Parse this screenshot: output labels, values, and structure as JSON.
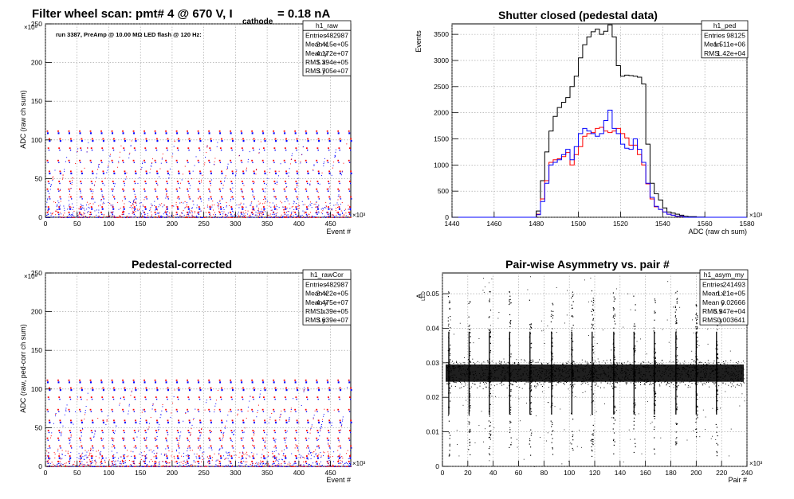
{
  "page_title": {
    "main": "Filter wheel scan: pmt#   4 @   670 V, I",
    "sub": "cathode",
    "tail": "= 0.18 nA"
  },
  "panels": {
    "raw": {
      "title": "",
      "annotation": "run 3387, PreAmp @ 10.00 MΩ LED flash @  120 Hz:",
      "xlabel": "Event #",
      "ylabel": "ADC (raw ch sum)",
      "x_exponent": "×10³",
      "y_exponent": "×10⁶",
      "stats": {
        "name": "h1_raw",
        "rows": [
          {
            "k": "Entries",
            "v": "482987"
          },
          {
            "k": "Mean x",
            "v": "2.415e+05"
          },
          {
            "k": "Mean y",
            "v": "4.172e+07"
          },
          {
            "k": "RMS x",
            "v": "1.394e+05"
          },
          {
            "k": "RMS y",
            "v": "3.705e+07"
          }
        ]
      }
    },
    "ped": {
      "title": "Shutter closed (pedestal data)",
      "xlabel": "ADC (raw ch sum)",
      "ylabel": "Events",
      "x_exponent": "×10³",
      "stats": {
        "name": "h1_ped",
        "rows": [
          {
            "k": "Entries",
            "v": "98125"
          },
          {
            "k": "Mean",
            "v": "1.511e+06"
          },
          {
            "k": "RMS",
            "v": "1.42e+04"
          }
        ]
      }
    },
    "cor": {
      "title": "Pedestal-corrected",
      "xlabel": "Event #",
      "ylabel": "ADC (raw, ped-corr ch sum)",
      "x_exponent": "×10³",
      "y_exponent": "×10⁶",
      "stats": {
        "name": "h1_rawCor",
        "rows": [
          {
            "k": "Entries",
            "v": "482987"
          },
          {
            "k": "Mean x",
            "v": "2.422e+05"
          },
          {
            "k": "Mean y",
            "v": "4.475e+07"
          },
          {
            "k": "RMS x",
            "v": "1.39e+05"
          },
          {
            "k": "RMS y",
            "v": "3.639e+07"
          }
        ]
      }
    },
    "asym": {
      "title": "Pair-wise Asymmetry vs. pair #",
      "xlabel": "Pair #",
      "ylabel": "A",
      "ylabel_sub": "LED",
      "x_exponent": "×10³",
      "stats": {
        "name": "h1_asym_my",
        "rows": [
          {
            "k": "Entries",
            "v": "241493"
          },
          {
            "k": "Mean x",
            "v": "1.21e+05"
          },
          {
            "k": "Mean y",
            "v": "0.02666"
          },
          {
            "k": "RMS x",
            "v": "6.947e+04"
          },
          {
            "k": "RMS y",
            "v": "0.003641"
          }
        ]
      }
    }
  },
  "colors": {
    "black": "#000000",
    "red": "#ff0000",
    "blue": "#0000ff",
    "grid": "#9a9a9a"
  },
  "chart_data": [
    {
      "id": "raw",
      "type": "scatter",
      "xlim": [
        0,
        482
      ],
      "ylim": [
        0,
        250
      ],
      "xticks": [
        0,
        50,
        100,
        150,
        200,
        250,
        300,
        350,
        400,
        450
      ],
      "yticks": [
        0,
        50,
        100,
        150,
        200,
        250
      ],
      "grid": true,
      "levels": [
        5,
        12,
        25,
        35,
        45,
        58,
        72,
        88,
        100,
        110
      ],
      "period": 17,
      "levels_note_units": "×10⁶ ADC"
    },
    {
      "id": "ped",
      "type": "line",
      "xlim": [
        1440,
        1580
      ],
      "ylim": [
        0,
        3700
      ],
      "xticks": [
        1440,
        1460,
        1480,
        1500,
        1520,
        1540,
        1560,
        1580
      ],
      "yticks": [
        0,
        500,
        1000,
        1500,
        2000,
        2500,
        3000,
        3500
      ],
      "grid": true,
      "bin_width": 2,
      "series": [
        {
          "color": "black",
          "x": [
            1440,
            1478,
            1480,
            1482,
            1484,
            1486,
            1488,
            1490,
            1492,
            1494,
            1496,
            1498,
            1500,
            1502,
            1504,
            1506,
            1508,
            1510,
            1512,
            1514,
            1516,
            1518,
            1520,
            1522,
            1524,
            1526,
            1528,
            1530,
            1532,
            1534,
            1536,
            1538,
            1540,
            1542,
            1544,
            1546,
            1548,
            1550,
            1552,
            1556,
            1560,
            1580
          ],
          "y": [
            0,
            0,
            120,
            700,
            1250,
            1650,
            1930,
            2100,
            2200,
            2290,
            2500,
            2700,
            3050,
            3300,
            3450,
            3550,
            3600,
            3500,
            3560,
            3680,
            3450,
            2900,
            2700,
            2720,
            2710,
            2700,
            2680,
            2550,
            1400,
            650,
            450,
            330,
            180,
            100,
            80,
            60,
            40,
            20,
            10,
            5,
            0,
            0
          ]
        },
        {
          "color": "red",
          "x": [
            1440,
            1478,
            1480,
            1482,
            1484,
            1486,
            1488,
            1490,
            1492,
            1494,
            1496,
            1498,
            1500,
            1502,
            1504,
            1506,
            1508,
            1510,
            1512,
            1514,
            1516,
            1518,
            1520,
            1522,
            1524,
            1526,
            1528,
            1530,
            1532,
            1534,
            1536,
            1538,
            1540,
            1542,
            1544,
            1546,
            1550,
            1580
          ],
          "y": [
            0,
            0,
            60,
            350,
            700,
            1050,
            1100,
            1120,
            1160,
            1240,
            1000,
            1200,
            1350,
            1550,
            1600,
            1620,
            1700,
            1720,
            1650,
            1620,
            1650,
            1700,
            1600,
            1520,
            1380,
            1380,
            1200,
            1000,
            640,
            350,
            200,
            150,
            100,
            60,
            40,
            20,
            0,
            0
          ]
        },
        {
          "color": "blue",
          "x": [
            1440,
            1478,
            1480,
            1482,
            1484,
            1486,
            1488,
            1490,
            1492,
            1494,
            1496,
            1498,
            1500,
            1502,
            1504,
            1506,
            1508,
            1510,
            1512,
            1514,
            1516,
            1518,
            1520,
            1522,
            1524,
            1526,
            1528,
            1530,
            1532,
            1534,
            1536,
            1538,
            1540,
            1542,
            1544,
            1546,
            1550,
            1580
          ],
          "y": [
            0,
            0,
            50,
            300,
            650,
            1000,
            1050,
            1100,
            1200,
            1300,
            1100,
            1350,
            1600,
            1700,
            1650,
            1600,
            1550,
            1600,
            1850,
            2050,
            1700,
            1600,
            1400,
            1320,
            1300,
            1500,
            1300,
            1050,
            650,
            380,
            210,
            150,
            100,
            60,
            40,
            20,
            0,
            0
          ]
        }
      ]
    },
    {
      "id": "cor",
      "type": "scatter",
      "xlim": [
        0,
        482
      ],
      "ylim": [
        0,
        250
      ],
      "xticks": [
        0,
        50,
        100,
        150,
        200,
        250,
        300,
        350,
        400,
        450
      ],
      "yticks": [
        0,
        50,
        100,
        150,
        200,
        250
      ],
      "grid": true,
      "levels": [
        5,
        12,
        25,
        35,
        45,
        58,
        72,
        88,
        100,
        110
      ],
      "period": 17
    },
    {
      "id": "asym",
      "type": "scatter",
      "xlim": [
        0,
        240
      ],
      "ylim": [
        0,
        0.056
      ],
      "xticks": [
        0,
        20,
        40,
        60,
        80,
        100,
        120,
        140,
        160,
        180,
        200,
        220,
        240
      ],
      "yticks": [
        0,
        0.01,
        0.02,
        0.03,
        0.04,
        0.05
      ],
      "grid": true,
      "center": 0.027,
      "band_halfwidth": 0.0025,
      "spike_x": [
        5,
        21,
        37,
        53,
        69,
        86,
        102,
        118,
        135,
        151,
        167,
        184,
        200,
        216
      ]
    }
  ]
}
